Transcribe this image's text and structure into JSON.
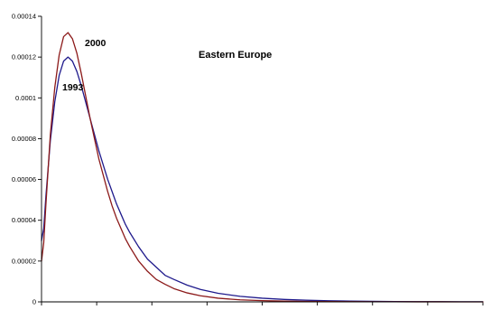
{
  "chart_data": {
    "type": "line",
    "title": "Eastern Europe",
    "xlabel": "",
    "ylabel": "",
    "ylim": [
      0,
      0.00014
    ],
    "yticks": [
      "0",
      "0.00002",
      "0.00004",
      "0.00006",
      "0.00008",
      "0.0001",
      "0.00012",
      "0.00014"
    ],
    "xlim": [
      0,
      100
    ],
    "xtick_count": 8,
    "grid": false,
    "legend": "none",
    "annotations": [
      {
        "text": "2000",
        "series": "2000"
      },
      {
        "text": "1993",
        "series": "1993"
      }
    ],
    "series": [
      {
        "name": "1993",
        "color": "#1f1a8c",
        "x": [
          0,
          0.5,
          1,
          2,
          3,
          4,
          5,
          6,
          7,
          8,
          9,
          10,
          11,
          12,
          13,
          14,
          15,
          16,
          17,
          18,
          19,
          20,
          22,
          24,
          26,
          28,
          30,
          33,
          36,
          40,
          45,
          50,
          55,
          60,
          65,
          70,
          75,
          80,
          85,
          90,
          95,
          100
        ],
        "y": [
          3e-05,
          3.6e-05,
          5.2e-05,
          7.9e-05,
          9.8e-05,
          0.000111,
          0.000118,
          0.00012,
          0.000118,
          0.000113,
          0.000106,
          9.8e-05,
          9e-05,
          8.2e-05,
          7.4e-05,
          6.7e-05,
          6e-05,
          5.4e-05,
          4.8e-05,
          4.3e-05,
          3.8e-05,
          3.4e-05,
          2.7e-05,
          2.1e-05,
          1.7e-05,
          1.3e-05,
          1.1e-05,
          8.2e-06,
          6.1e-06,
          4.2e-06,
          2.7e-06,
          1.8e-06,
          1.2e-06,
          8e-07,
          5.5e-07,
          3.8e-07,
          2.6e-07,
          1.8e-07,
          1.2e-07,
          8e-08,
          6e-08,
          4e-08
        ]
      },
      {
        "name": "2000",
        "color": "#8c1a1a",
        "x": [
          0,
          0.5,
          1,
          2,
          3,
          4,
          5,
          6,
          7,
          8,
          9,
          10,
          11,
          12,
          13,
          14,
          15,
          16,
          17,
          18,
          19,
          20,
          22,
          24,
          26,
          28,
          30,
          33,
          36,
          40,
          45,
          50,
          55,
          60,
          65,
          70,
          75,
          80,
          85,
          90,
          95,
          100
        ],
        "y": [
          2e-05,
          2.9e-05,
          4.8e-05,
          8.2e-05,
          0.000105,
          0.000121,
          0.00013,
          0.000132,
          0.000129,
          0.000122,
          0.000112,
          0.000101,
          9e-05,
          8e-05,
          7e-05,
          6.2e-05,
          5.4e-05,
          4.7e-05,
          4.1e-05,
          3.6e-05,
          3.1e-05,
          2.7e-05,
          2e-05,
          1.5e-05,
          1.1e-05,
          8.6e-06,
          6.5e-06,
          4.4e-06,
          3e-06,
          1.8e-06,
          1e-06,
          6e-07,
          3.6e-07,
          2.2e-07,
          1.4e-07,
          9e-08,
          6e-08,
          4e-08,
          3e-08,
          2e-08,
          1e-08,
          1e-08
        ]
      }
    ]
  }
}
